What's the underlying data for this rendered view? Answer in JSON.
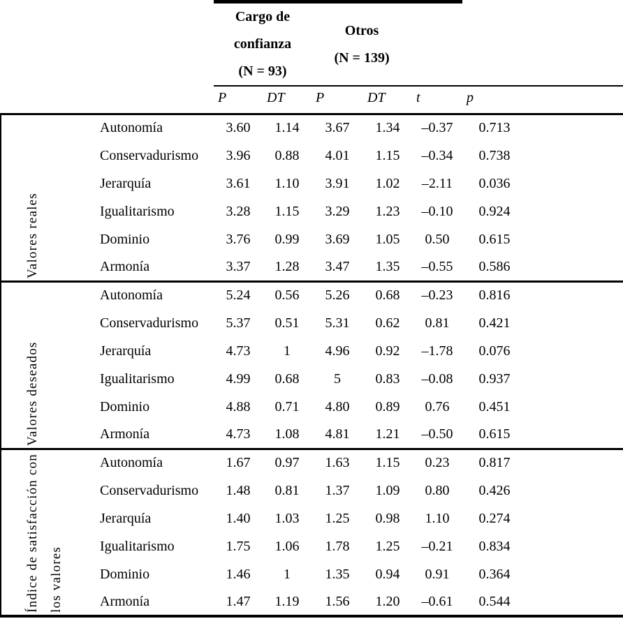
{
  "page": {
    "background": "#ffffff",
    "text_color": "#000000",
    "rule_color": "#000000"
  },
  "table": {
    "header": {
      "groups": [
        {
          "name": "Cargo de confianza",
          "n_label": "(N = 93)"
        },
        {
          "name": "Otros",
          "n_label": "(N = 139)"
        }
      ],
      "columns": [
        "P",
        "DT",
        "P",
        "DT",
        "t",
        "p"
      ]
    },
    "row_groups": [
      {
        "label_lines": [
          "Valores reales"
        ],
        "rows": [
          {
            "name": "Autonomía",
            "values": [
              "3.60",
              "1.14",
              "3.67",
              "1.34",
              "–0.37",
              "0.713"
            ]
          },
          {
            "name": "Conservadurismo",
            "values": [
              "3.96",
              "0.88",
              "4.01",
              "1.15",
              "–0.34",
              "0.738"
            ]
          },
          {
            "name": "Jerarquía",
            "values": [
              "3.61",
              "1.10",
              "3.91",
              "1.02",
              "–2.11",
              "0.036"
            ]
          },
          {
            "name": "Igualitarismo",
            "values": [
              "3.28",
              "1.15",
              "3.29",
              "1.23",
              "–0.10",
              "0.924"
            ]
          },
          {
            "name": "Dominio",
            "values": [
              "3.76",
              "0.99",
              "3.69",
              "1.05",
              "0.50",
              "0.615"
            ]
          },
          {
            "name": "Armonía",
            "values": [
              "3.37",
              "1.28",
              "3.47",
              "1.35",
              "–0.55",
              "0.586"
            ]
          }
        ]
      },
      {
        "label_lines": [
          "Valores deseados"
        ],
        "rows": [
          {
            "name": "Autonomía",
            "values": [
              "5.24",
              "0.56",
              "5.26",
              "0.68",
              "–0.23",
              "0.816"
            ]
          },
          {
            "name": "Conservadurismo",
            "values": [
              "5.37",
              "0.51",
              "5.31",
              "0.62",
              "0.81",
              "0.421"
            ]
          },
          {
            "name": "Jerarquía",
            "values": [
              "4.73",
              "1",
              "4.96",
              "0.92",
              "–1.78",
              "0.076"
            ]
          },
          {
            "name": "Igualitarismo",
            "values": [
              "4.99",
              "0.68",
              "5",
              "0.83",
              "–0.08",
              "0.937"
            ]
          },
          {
            "name": "Dominio",
            "values": [
              "4.88",
              "0.71",
              "4.80",
              "0.89",
              "0.76",
              "0.451"
            ]
          },
          {
            "name": "Armonía",
            "values": [
              "4.73",
              "1.08",
              "4.81",
              "1.21",
              "–0.50",
              "0.615"
            ]
          }
        ]
      },
      {
        "label_lines": [
          "Índice de satisfacción con",
          "los valores"
        ],
        "rows": [
          {
            "name": "Autonomía",
            "values": [
              "1.67",
              "0.97",
              "1.63",
              "1.15",
              "0.23",
              "0.817"
            ]
          },
          {
            "name": "Conservadurismo",
            "values": [
              "1.48",
              "0.81",
              "1.37",
              "1.09",
              "0.80",
              "0.426"
            ]
          },
          {
            "name": "Jerarquía",
            "values": [
              "1.40",
              "1.03",
              "1.25",
              "0.98",
              "1.10",
              "0.274"
            ]
          },
          {
            "name": "Igualitarismo",
            "values": [
              "1.75",
              "1.06",
              "1.78",
              "1.25",
              "–0.21",
              "0.834"
            ]
          },
          {
            "name": "Dominio",
            "values": [
              "1.46",
              "1",
              "1.35",
              "0.94",
              "0.91",
              "0.364"
            ]
          },
          {
            "name": "Armonía",
            "values": [
              "1.47",
              "1.19",
              "1.56",
              "1.20",
              "–0.61",
              "0.544"
            ]
          }
        ]
      }
    ]
  }
}
